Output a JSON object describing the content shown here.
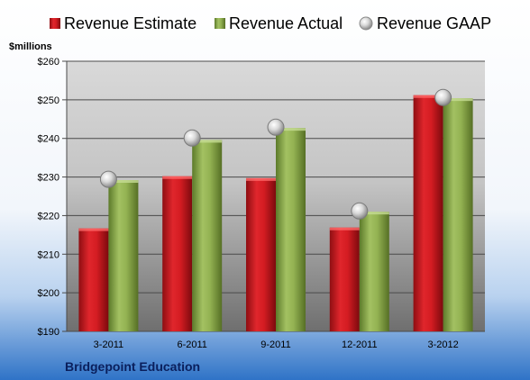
{
  "chart_data": {
    "type": "bar",
    "categories": [
      "3-2011",
      "6-2011",
      "9-2011",
      "12-2011",
      "3-2012"
    ],
    "series": [
      {
        "name": "Revenue Estimate",
        "kind": "bar",
        "color": "#c0141c",
        "values": [
          216.7,
          230.2,
          229.7,
          216.9,
          251.2
        ]
      },
      {
        "name": "Revenue Actual",
        "kind": "bar",
        "color": "#8aa84a",
        "values": [
          229.2,
          239.6,
          242.7,
          221.0,
          250.4
        ]
      },
      {
        "name": "Revenue GAAP",
        "kind": "marker",
        "color": "#bfbfbf",
        "values": [
          229.4,
          240.1,
          242.9,
          221.2,
          250.6
        ]
      }
    ],
    "ylabel": "$millions",
    "ylim": [
      190,
      260
    ],
    "yticks": [
      190,
      200,
      210,
      220,
      230,
      240,
      250,
      260
    ],
    "ytick_labels": [
      "$190",
      "$200",
      "$210",
      "$220",
      "$230",
      "$240",
      "$250",
      "$260"
    ],
    "grid": true,
    "legend_position": "top",
    "footer_title": "Bridgepoint Education",
    "background": {
      "top": "#ffffff",
      "bottom": "#2f73c7"
    }
  }
}
